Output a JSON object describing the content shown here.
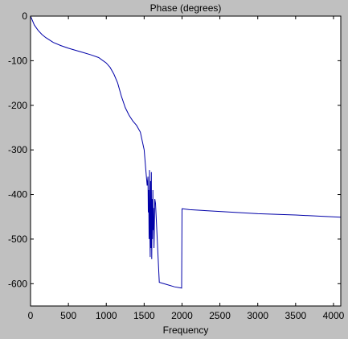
{
  "chart_data": {
    "type": "line",
    "title": "Phase (degrees)",
    "xlabel": "Frequency",
    "ylabel": "",
    "xlim": [
      0,
      4096
    ],
    "ylim": [
      -650,
      0
    ],
    "xticks": [
      0,
      500,
      1000,
      1500,
      2000,
      2500,
      3000,
      3500,
      4000
    ],
    "yticks": [
      0,
      -100,
      -200,
      -300,
      -400,
      -500,
      -600
    ],
    "grid": false,
    "colors": {
      "line": "#0000a8",
      "axes_bg": "#ffffff",
      "figure_bg": "#c0c0c0",
      "axis": "#000000"
    },
    "series": [
      {
        "x": [
          0,
          20,
          50,
          100,
          150,
          200,
          300,
          400,
          500,
          600,
          700,
          800,
          900,
          1000,
          1050,
          1100,
          1150,
          1200,
          1250,
          1300,
          1350,
          1400,
          1450,
          1500,
          1520,
          1540,
          1550,
          1555,
          1560,
          1565,
          1570,
          1575,
          1580,
          1585,
          1590,
          1595,
          1600,
          1605,
          1610,
          1615,
          1620,
          1625,
          1630,
          1640,
          1650,
          1700,
          1800,
          1900,
          1995,
          2000,
          2005,
          2100,
          2500,
          3000,
          3500,
          4096
        ],
        "y": [
          0,
          -8,
          -20,
          -32,
          -41,
          -48,
          -59,
          -66,
          -72,
          -77,
          -82,
          -87,
          -93,
          -105,
          -115,
          -130,
          -150,
          -180,
          -205,
          -222,
          -235,
          -245,
          -260,
          -300,
          -340,
          -380,
          -360,
          -440,
          -390,
          -500,
          -345,
          -470,
          -540,
          -370,
          -520,
          -350,
          -545,
          -410,
          -500,
          -390,
          -480,
          -430,
          -520,
          -410,
          -420,
          -597,
          -602,
          -607,
          -610,
          -432,
          -432,
          -434,
          -438,
          -443,
          -446,
          -451
        ]
      }
    ]
  }
}
